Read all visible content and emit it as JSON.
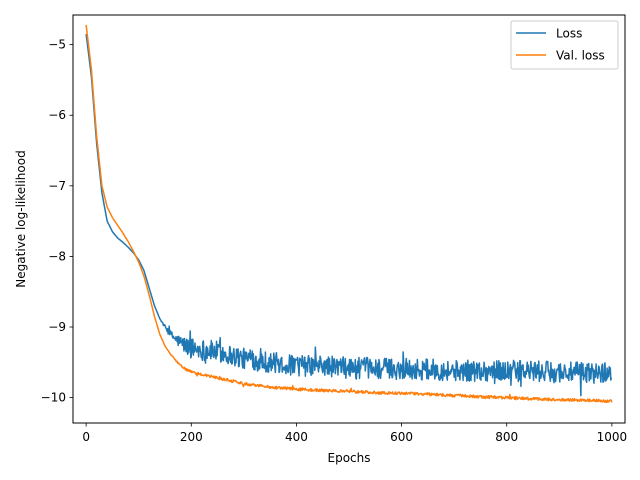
{
  "chart_data": {
    "type": "line",
    "title": "",
    "xlabel": "Epochs",
    "ylabel": "Negative log-likelihood",
    "xlim": [
      -25,
      1025
    ],
    "ylim": [
      -10.36,
      -4.58
    ],
    "xticks": [
      0,
      200,
      400,
      600,
      800,
      1000
    ],
    "yticks": [
      -5,
      -6,
      -7,
      -8,
      -9,
      -10
    ],
    "xtick_labels": [
      "0",
      "200",
      "400",
      "600",
      "800",
      "1000"
    ],
    "ytick_labels": [
      "−5",
      "−6",
      "−7",
      "−8",
      "−9",
      "−10"
    ],
    "grid": false,
    "legend_position": "top-right",
    "series": [
      {
        "name": "Loss",
        "color": "#1f77b4",
        "noise_amplitude_after_200": 0.15,
        "x": [
          0,
          10,
          20,
          30,
          40,
          50,
          60,
          70,
          80,
          90,
          100,
          110,
          120,
          130,
          140,
          150,
          160,
          170,
          180,
          190,
          200,
          250,
          300,
          350,
          400,
          450,
          500,
          550,
          600,
          650,
          700,
          750,
          800,
          850,
          900,
          950,
          1000
        ],
        "y": [
          -4.85,
          -5.45,
          -6.4,
          -7.1,
          -7.5,
          -7.65,
          -7.74,
          -7.8,
          -7.87,
          -7.95,
          -8.05,
          -8.2,
          -8.45,
          -8.7,
          -8.88,
          -9.0,
          -9.1,
          -9.17,
          -9.22,
          -9.27,
          -9.3,
          -9.35,
          -9.45,
          -9.5,
          -9.55,
          -9.55,
          -9.58,
          -9.58,
          -9.6,
          -9.6,
          -9.62,
          -9.62,
          -9.62,
          -9.63,
          -9.64,
          -9.65,
          -9.65
        ]
      },
      {
        "name": "Val. loss",
        "color": "#ff7f0e",
        "noise_amplitude_after_200": 0.02,
        "x": [
          0,
          10,
          20,
          30,
          40,
          50,
          60,
          70,
          80,
          90,
          100,
          110,
          120,
          130,
          140,
          150,
          160,
          170,
          180,
          190,
          200,
          250,
          300,
          350,
          400,
          450,
          500,
          550,
          600,
          650,
          700,
          750,
          800,
          850,
          900,
          950,
          1000
        ],
        "y": [
          -4.72,
          -5.35,
          -6.3,
          -7.0,
          -7.3,
          -7.45,
          -7.56,
          -7.67,
          -7.79,
          -7.93,
          -8.08,
          -8.28,
          -8.55,
          -8.85,
          -9.1,
          -9.27,
          -9.38,
          -9.47,
          -9.55,
          -9.6,
          -9.64,
          -9.72,
          -9.8,
          -9.85,
          -9.88,
          -9.9,
          -9.91,
          -9.93,
          -9.94,
          -9.95,
          -9.97,
          -9.99,
          -10.0,
          -10.02,
          -10.03,
          -10.04,
          -10.05
        ]
      }
    ]
  }
}
